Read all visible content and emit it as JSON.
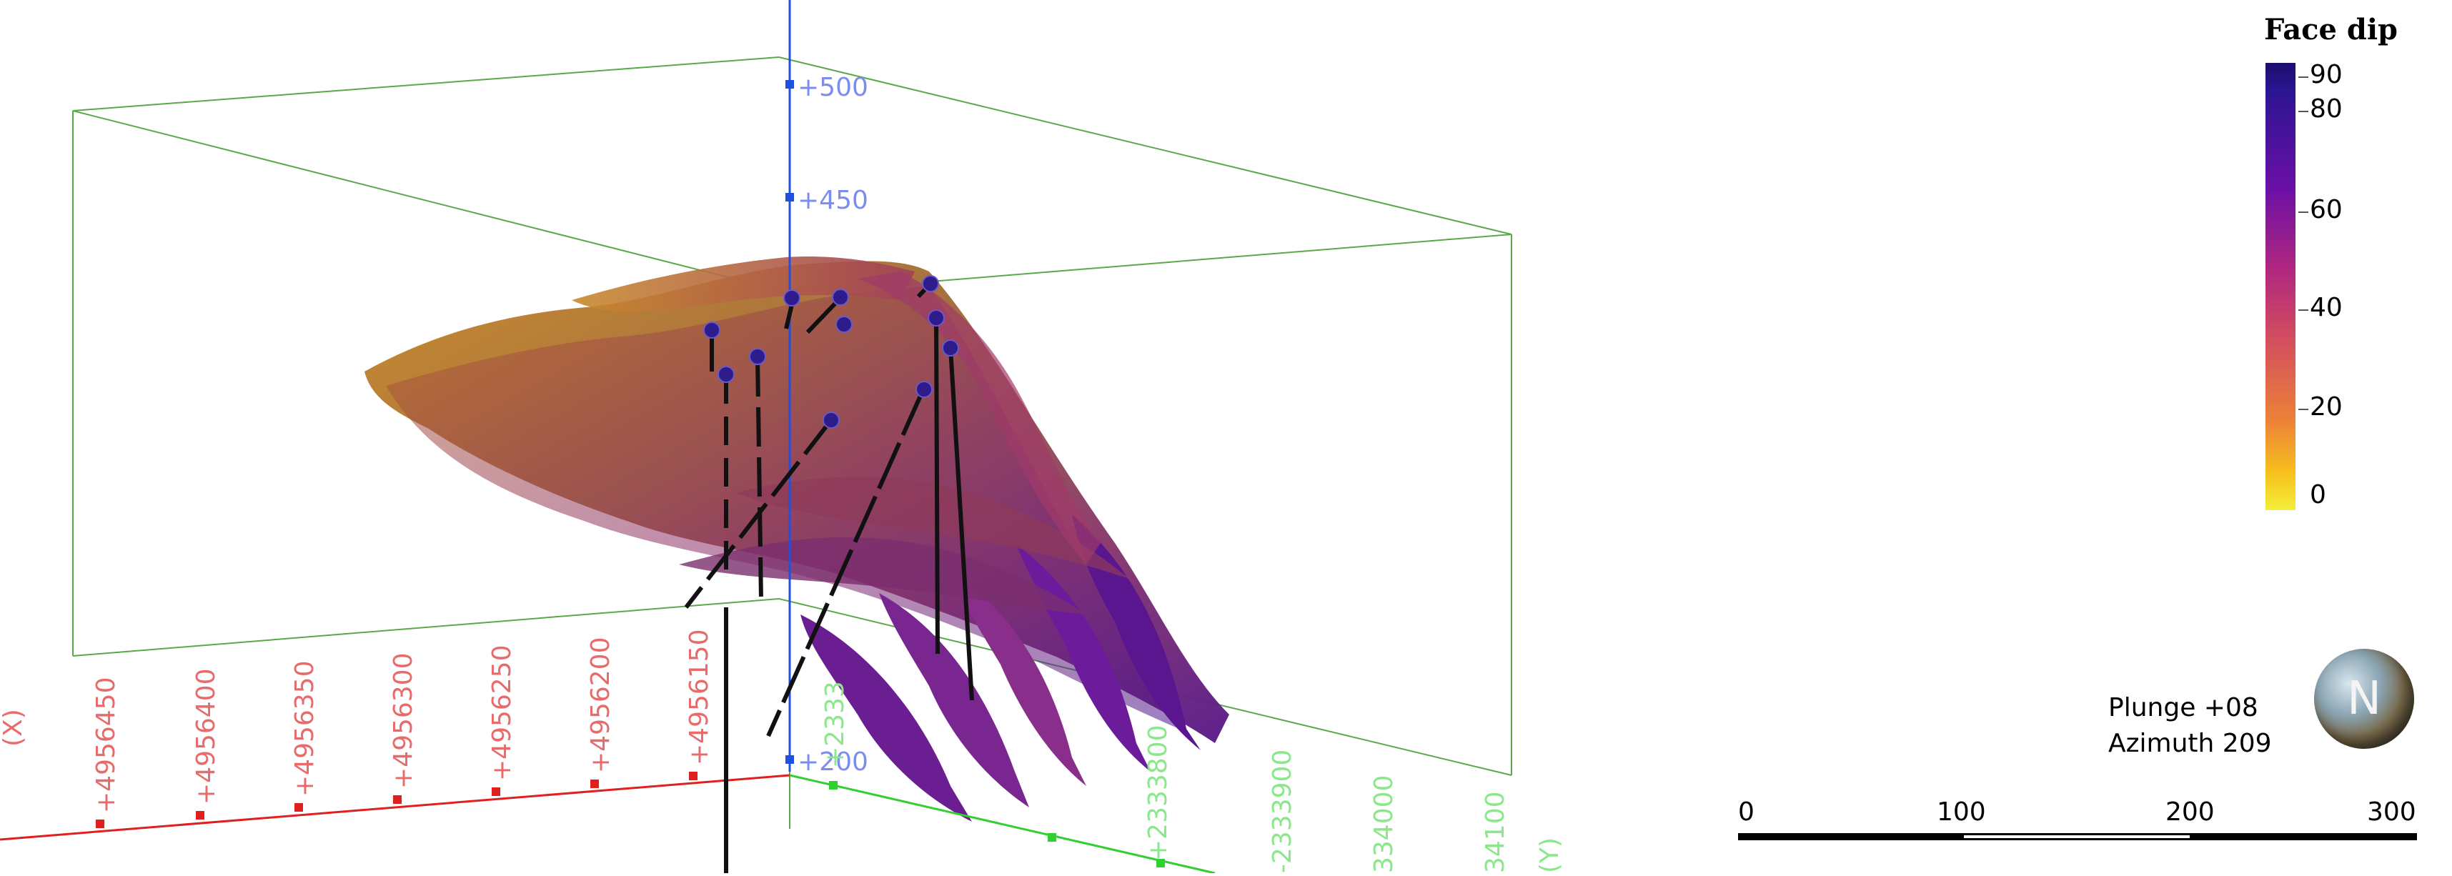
{
  "legend": {
    "title": "Face dip",
    "labels": [
      "90",
      "80",
      "60",
      "40",
      "20",
      "0"
    ]
  },
  "view": {
    "plunge": "Plunge +08",
    "azimuth": "Azimuth 209"
  },
  "compass": {
    "letter": "N"
  },
  "scale_bar": {
    "labels": [
      "0",
      "100",
      "200",
      "300"
    ]
  },
  "axes": {
    "z_labels": [
      "+500",
      "+450",
      "+200"
    ],
    "x_labels": [
      "+4956450",
      "+4956400",
      "+4956350",
      "+4956300",
      "+4956250",
      "+4956200",
      "+4956150"
    ],
    "y_labels": [
      "+2333",
      "+2333800",
      "-2333900",
      "334000",
      "34100"
    ],
    "y_axis_letter": "(Y)",
    "x_axis_letter": "(X)"
  },
  "colors": {
    "x_axis": "#e84040",
    "y_axis": "#40e040",
    "z_axis": "#2050e0",
    "box": "#5aa84a",
    "drillhole_marker": "#2e1c8c"
  }
}
